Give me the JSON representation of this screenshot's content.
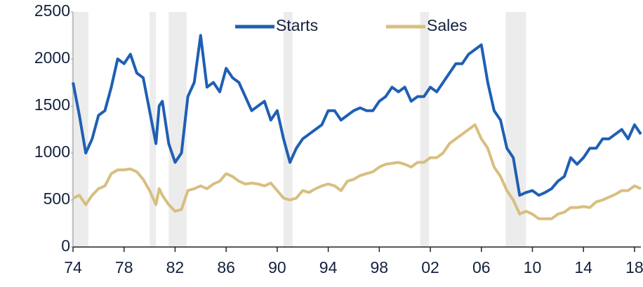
{
  "chart_data": {
    "type": "line",
    "x": [
      1974,
      1974.5,
      1975,
      1975.5,
      1976,
      1976.5,
      1977,
      1977.5,
      1978,
      1978.5,
      1979,
      1979.5,
      1980,
      1980.5,
      1980.75,
      1981,
      1981.5,
      1982,
      1982.5,
      1983,
      1983.5,
      1984,
      1984.5,
      1985,
      1985.5,
      1986,
      1986.5,
      1987,
      1987.5,
      1988,
      1988.5,
      1989,
      1989.5,
      1990,
      1990.5,
      1991,
      1991.5,
      1992,
      1992.5,
      1993,
      1993.5,
      1994,
      1994.5,
      1995,
      1995.5,
      1996,
      1996.5,
      1997,
      1997.5,
      1998,
      1998.5,
      1999,
      1999.5,
      2000,
      2000.5,
      2001,
      2001.5,
      2002,
      2002.5,
      2003,
      2003.5,
      2004,
      2004.5,
      2005,
      2005.5,
      2006,
      2006.5,
      2007,
      2007.5,
      2008,
      2008.5,
      2009,
      2009.5,
      2010,
      2010.5,
      2011,
      2011.5,
      2012,
      2012.5,
      2013,
      2013.5,
      2014,
      2014.5,
      2015,
      2015.5,
      2016,
      2016.5,
      2017,
      2017.5,
      2018,
      2018.5
    ],
    "series": [
      {
        "name": "Starts",
        "color": "#1f5fb4",
        "values": [
          1750,
          1400,
          1000,
          1150,
          1400,
          1450,
          1700,
          2000,
          1950,
          2050,
          1850,
          1800,
          1450,
          1100,
          1500,
          1550,
          1100,
          900,
          1000,
          1600,
          1750,
          2250,
          1700,
          1750,
          1650,
          1900,
          1800,
          1750,
          1600,
          1450,
          1500,
          1550,
          1350,
          1450,
          1150,
          900,
          1050,
          1150,
          1200,
          1250,
          1300,
          1450,
          1450,
          1350,
          1400,
          1450,
          1480,
          1450,
          1450,
          1550,
          1600,
          1700,
          1650,
          1700,
          1550,
          1600,
          1600,
          1700,
          1650,
          1750,
          1850,
          1950,
          1950,
          2050,
          2100,
          2150,
          1750,
          1450,
          1350,
          1050,
          950,
          550,
          580,
          600,
          550,
          580,
          620,
          700,
          750,
          950,
          880,
          950,
          1050,
          1050,
          1150,
          1150,
          1200,
          1250,
          1150,
          1300,
          1200
        ]
      },
      {
        "name": "Sales",
        "color": "#d8bf7f",
        "values": [
          520,
          550,
          450,
          550,
          620,
          650,
          780,
          820,
          820,
          830,
          800,
          720,
          600,
          450,
          620,
          550,
          450,
          380,
          400,
          600,
          620,
          650,
          620,
          670,
          700,
          780,
          750,
          700,
          670,
          680,
          670,
          650,
          680,
          600,
          520,
          500,
          520,
          600,
          580,
          620,
          650,
          670,
          650,
          600,
          700,
          720,
          760,
          780,
          800,
          850,
          880,
          890,
          900,
          880,
          850,
          900,
          900,
          950,
          950,
          1000,
          1100,
          1150,
          1200,
          1250,
          1300,
          1150,
          1050,
          850,
          750,
          600,
          500,
          350,
          380,
          350,
          300,
          300,
          300,
          350,
          370,
          420,
          420,
          430,
          420,
          480,
          500,
          530,
          560,
          600,
          600,
          650,
          620
        ]
      }
    ],
    "shaded_periods": [
      [
        1973.9,
        1975.2
      ],
      [
        1980.0,
        1980.5
      ],
      [
        1981.5,
        1982.9
      ],
      [
        1990.5,
        1991.2
      ],
      [
        2001.2,
        2001.9
      ],
      [
        2007.9,
        2009.5
      ]
    ],
    "xlim": [
      1974,
      2018.5
    ],
    "xticks": [
      {
        "value": 1974,
        "label": "74"
      },
      {
        "value": 1978,
        "label": "78"
      },
      {
        "value": 1982,
        "label": "82"
      },
      {
        "value": 1986,
        "label": "86"
      },
      {
        "value": 1990,
        "label": "90"
      },
      {
        "value": 1994,
        "label": "94"
      },
      {
        "value": 1998,
        "label": "98"
      },
      {
        "value": 2002,
        "label": "02"
      },
      {
        "value": 2006,
        "label": "06"
      },
      {
        "value": 2010,
        "label": "10"
      },
      {
        "value": 2014,
        "label": "14"
      },
      {
        "value": 2018,
        "label": "18"
      }
    ],
    "ylim": [
      0,
      2500
    ],
    "yticks": [
      0,
      500,
      1000,
      1500,
      2000,
      2500
    ],
    "legend": "top"
  }
}
